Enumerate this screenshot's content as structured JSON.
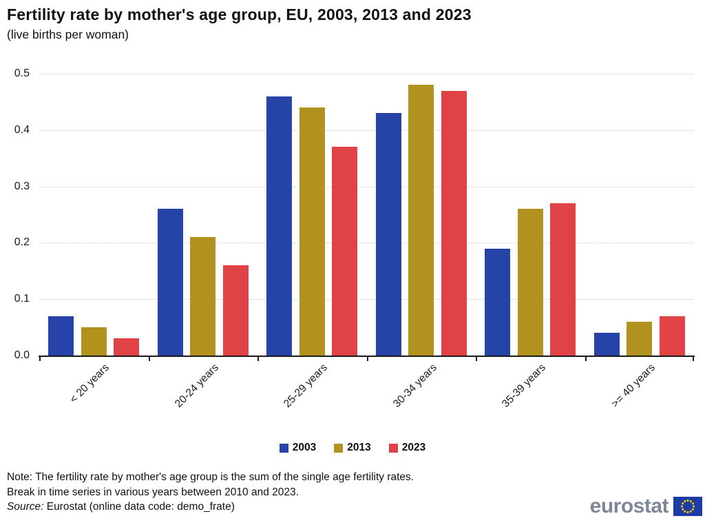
{
  "header": {
    "title": "Fertility rate by mother's age group, EU, 2003, 2013 and 2023",
    "subtitle": "(live births per woman)"
  },
  "chart_data": {
    "type": "bar",
    "title": "Fertility rate by mother's age group, EU, 2003, 2013 and 2023",
    "subtitle": "(live births per woman)",
    "categories": [
      "< 20 years",
      "20-24 years",
      "25-29 years",
      "30-34 years",
      "35-39 years",
      ">= 40 years"
    ],
    "series": [
      {
        "name": "2003",
        "color": "#2644A7",
        "values": [
          0.07,
          0.26,
          0.46,
          0.43,
          0.19,
          0.04
        ]
      },
      {
        "name": "2013",
        "color": "#B2921F",
        "values": [
          0.05,
          0.21,
          0.44,
          0.48,
          0.26,
          0.06
        ]
      },
      {
        "name": "2023",
        "color": "#E04245",
        "values": [
          0.03,
          0.16,
          0.37,
          0.47,
          0.27,
          0.07
        ]
      }
    ],
    "xlabel": "",
    "ylabel": "",
    "ylim": [
      0,
      0.5
    ],
    "ytick_step": 0.1,
    "yticks": [
      "0.0",
      "0.1",
      "0.2",
      "0.3",
      "0.4",
      "0.5"
    ],
    "grid": "horizontal-dotted",
    "legend_position": "bottom"
  },
  "footer": {
    "note_lines": [
      "Note: The fertility rate by mother's age group is the sum of the single age fertility rates.",
      "Break in time series in various years between 2010 and 2023."
    ],
    "source_label": "Source:",
    "source_rest": " Eurostat (online data code: demo_frate)",
    "logo_text": "eurostat"
  },
  "colors": {
    "axis": "#1a1a1a",
    "gridline": "#cccccc",
    "logo_gray": "#7d8795",
    "flag_blue": "#1e3da4",
    "flag_stars": "#ffcc00"
  }
}
